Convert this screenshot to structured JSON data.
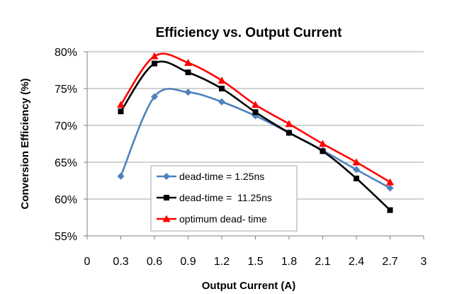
{
  "chart_data": {
    "type": "line",
    "title": "Efficiency vs. Output Current",
    "xlabel": "Output Current (A)",
    "ylabel": "Conversion Efficiency (%)",
    "xlim": [
      0,
      3
    ],
    "ylim": [
      55,
      80
    ],
    "x_ticks": [
      0,
      0.3,
      0.6,
      0.9,
      1.2,
      1.5,
      1.8,
      2.1,
      2.4,
      2.7,
      3
    ],
    "x_tick_labels": [
      "0",
      "0.3",
      "0.6",
      "0.9",
      "1.2",
      "1.5",
      "1.8",
      "2.1",
      "2.4",
      "2.7",
      "3"
    ],
    "y_ticks": [
      55,
      60,
      65,
      70,
      75,
      80
    ],
    "y_tick_labels": [
      "55%",
      "60%",
      "65%",
      "70%",
      "75%",
      "80%"
    ],
    "grid": "horizontal",
    "smooth": true,
    "legend_position": "bottom-center",
    "x": [
      0.3,
      0.6,
      0.9,
      1.2,
      1.5,
      1.8,
      2.1,
      2.4,
      2.7
    ],
    "series": [
      {
        "name": "dead-time = 1.25ns",
        "color": "#4F81BD",
        "marker": "diamond",
        "values": [
          63.1,
          73.9,
          74.5,
          73.2,
          71.3,
          69.0,
          66.6,
          64.0,
          61.5
        ]
      },
      {
        "name": "dead-time =  11.25ns",
        "color": "#000000",
        "marker": "square",
        "values": [
          71.9,
          78.4,
          77.2,
          75.0,
          71.8,
          69.0,
          66.5,
          62.8,
          58.5
        ]
      },
      {
        "name": "optimum dead- time",
        "color": "#FF0000",
        "marker": "triangle",
        "values": [
          72.8,
          79.4,
          78.5,
          76.1,
          72.8,
          70.2,
          67.5,
          65.0,
          62.3
        ]
      }
    ]
  }
}
